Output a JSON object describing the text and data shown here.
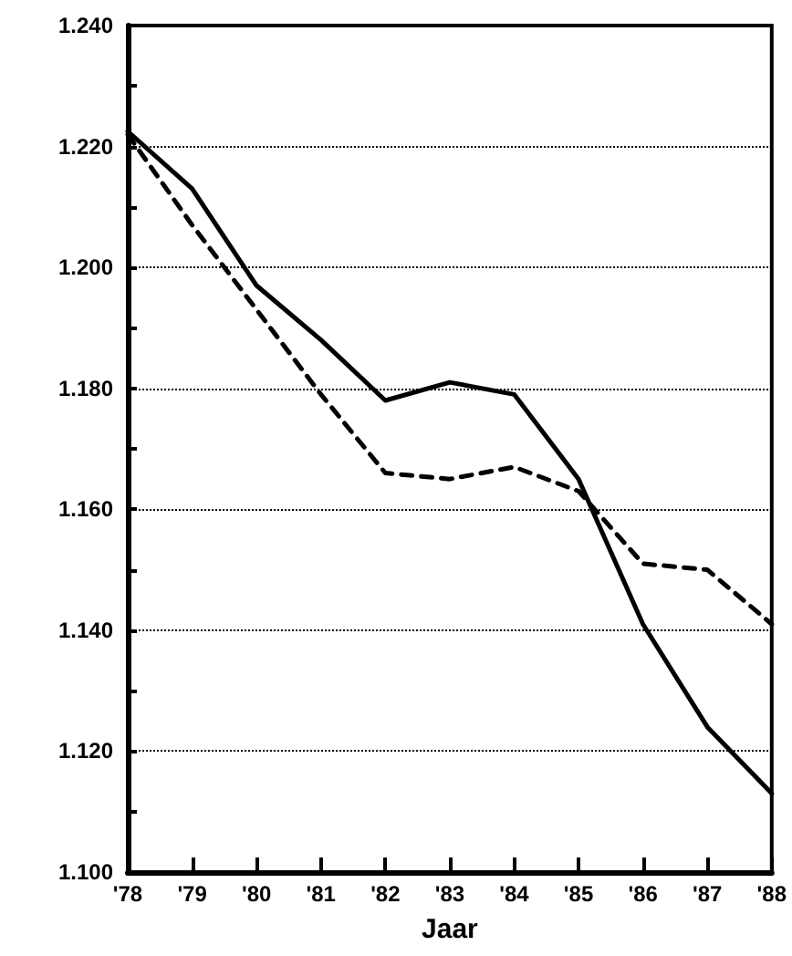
{
  "chart_data": {
    "type": "line",
    "xlabel": "Jaar",
    "categories": [
      "'78",
      "'79",
      "'80",
      "'81",
      "'82",
      "'83",
      "'84",
      "'85",
      "'86",
      "'87",
      "'88"
    ],
    "series": [
      {
        "color": "#000000",
        "line_style": "solid",
        "values": [
          1.2225,
          1.213,
          1.197,
          1.188,
          1.178,
          1.181,
          1.179,
          1.165,
          1.141,
          1.124,
          1.113
        ]
      },
      {
        "color": "#000000",
        "line_style": "dashed",
        "values": [
          1.222,
          1.207,
          1.193,
          1.179,
          1.166,
          1.165,
          1.167,
          1.163,
          1.151,
          1.15,
          1.141
        ]
      }
    ],
    "ylim": [
      1.1,
      1.24
    ],
    "yticks": [
      {
        "value": 1.1,
        "label": "1.100"
      },
      {
        "value": 1.11,
        "label": null
      },
      {
        "value": 1.12,
        "label": "1.120"
      },
      {
        "value": 1.13,
        "label": null
      },
      {
        "value": 1.14,
        "label": "1.140"
      },
      {
        "value": 1.15,
        "label": null
      },
      {
        "value": 1.16,
        "label": "1.160"
      },
      {
        "value": 1.17,
        "label": null
      },
      {
        "value": 1.18,
        "label": "1.180"
      },
      {
        "value": 1.19,
        "label": null
      },
      {
        "value": 1.2,
        "label": "1.200"
      },
      {
        "value": 1.21,
        "label": null
      },
      {
        "value": 1.22,
        "label": "1.220"
      },
      {
        "value": 1.23,
        "label": null
      },
      {
        "value": 1.24,
        "label": "1.240"
      }
    ],
    "grid": "y",
    "marker": "none"
  }
}
